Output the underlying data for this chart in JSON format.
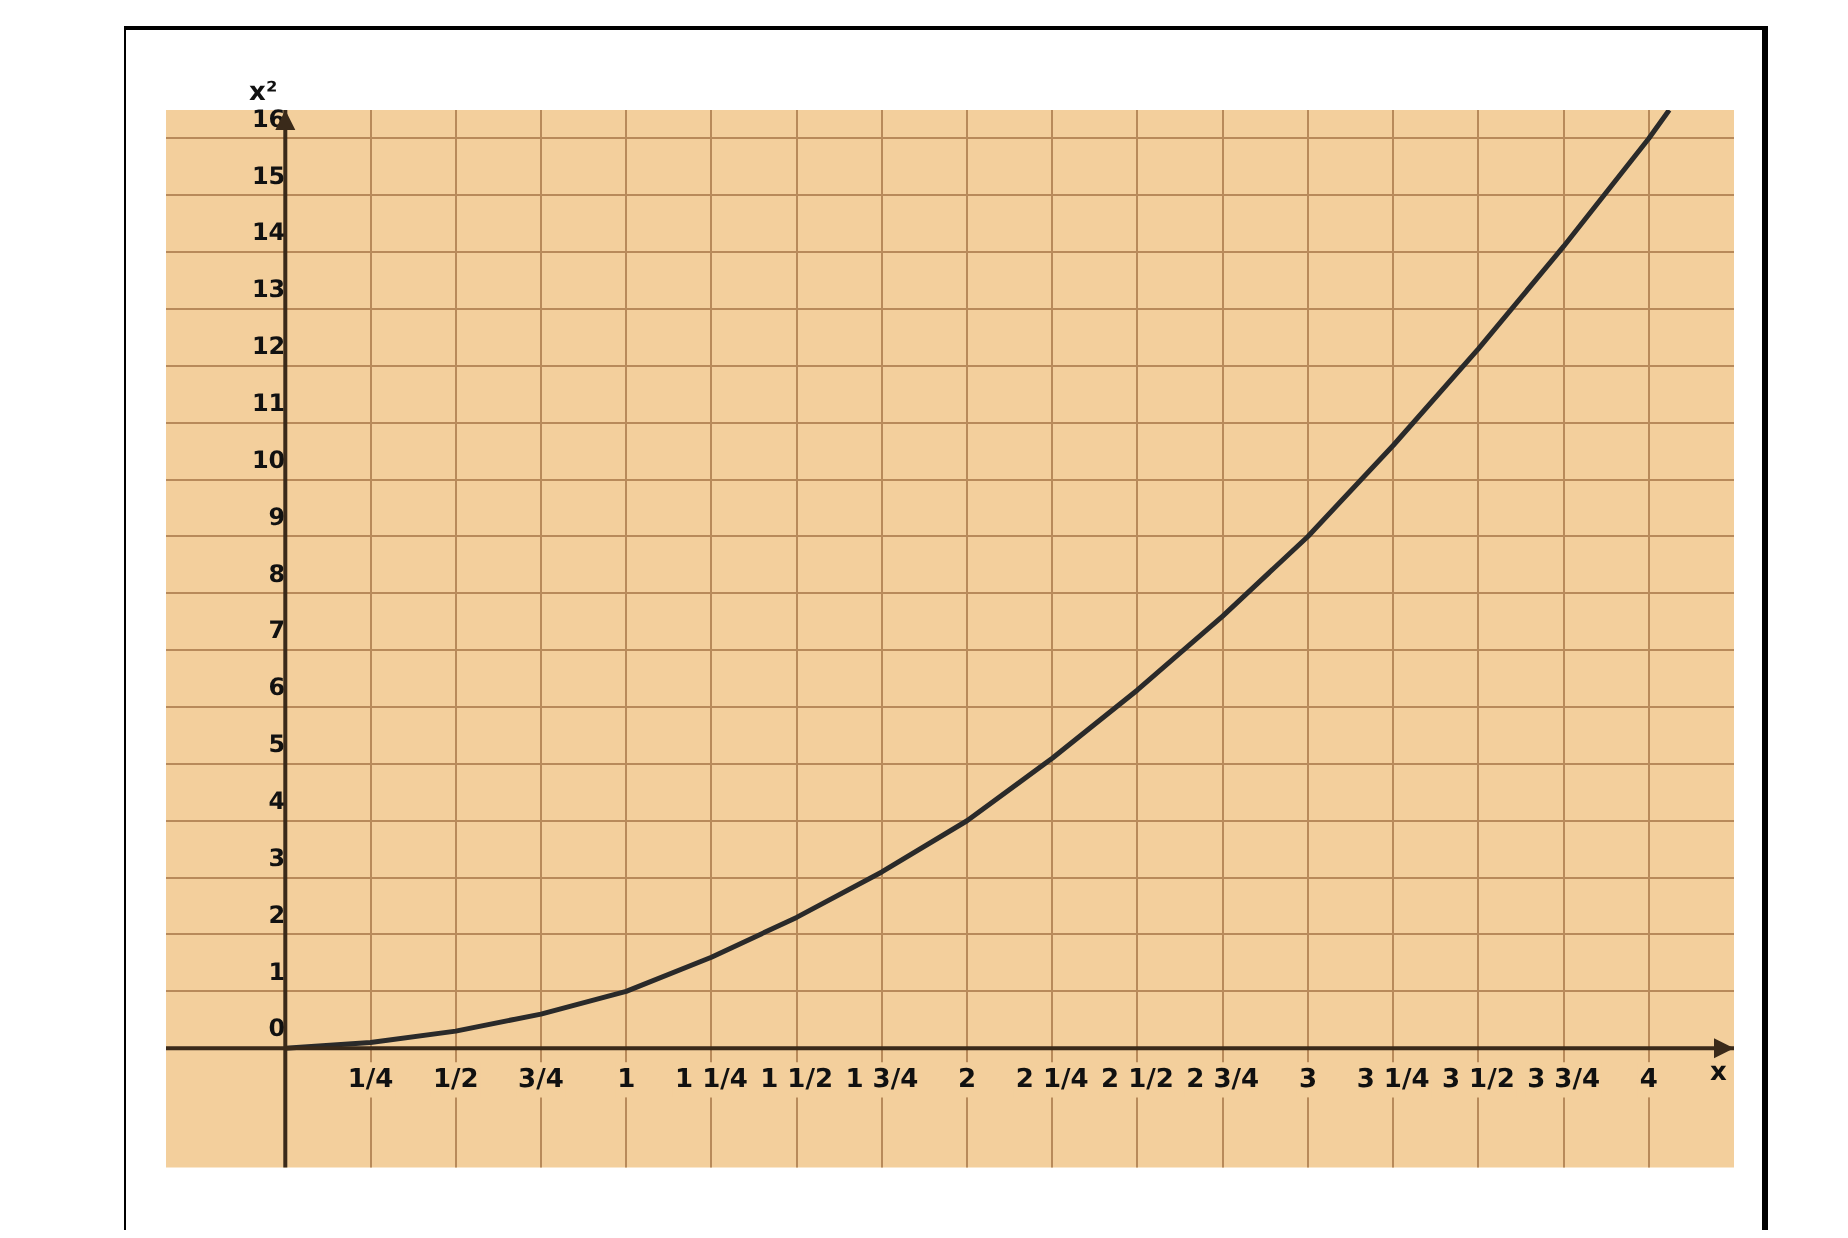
{
  "chart_data": {
    "type": "line",
    "xlabel": "x",
    "ylabel": "x²",
    "x": [
      0,
      0.25,
      0.5,
      0.75,
      1,
      1.25,
      1.5,
      1.75,
      2,
      2.25,
      2.5,
      2.75,
      3,
      3.25,
      3.5,
      3.75,
      4,
      4.06
    ],
    "series": [
      {
        "color": "#2a2a2a",
        "values": [
          0,
          0.1,
          0.3,
          0.6,
          1,
          1.6,
          2.3,
          3.1,
          4,
          5.1,
          6.3,
          7.6,
          9,
          10.6,
          12.3,
          14.1,
          16,
          16.5
        ]
      }
    ],
    "xlim": [
      -0.35,
      4.25
    ],
    "ylim": [
      -2.1,
      16.5
    ],
    "xticks": [
      {
        "value": 0.25,
        "label": "1/4"
      },
      {
        "value": 0.5,
        "label": "1/2"
      },
      {
        "value": 0.75,
        "label": "3/4"
      },
      1,
      {
        "value": 1.25,
        "label": "1 1/4"
      },
      {
        "value": 1.5,
        "label": "1 1/2"
      },
      {
        "value": 1.75,
        "label": "1 3/4"
      },
      2,
      {
        "value": 2.25,
        "label": "2 1/4"
      },
      {
        "value": 2.5,
        "label": "2 1/2"
      },
      {
        "value": 2.75,
        "label": "2 3/4"
      },
      3,
      {
        "value": 3.25,
        "label": "3 1/4"
      },
      {
        "value": 3.5,
        "label": "3 1/2"
      },
      {
        "value": 3.75,
        "label": "3 3/4"
      },
      4
    ],
    "yticks": [
      0,
      1,
      2,
      3,
      4,
      5,
      6,
      7,
      8,
      9,
      10,
      11,
      12,
      13,
      14,
      15,
      16
    ],
    "grid": true,
    "marker": "none",
    "line_style": "solid",
    "legend": false
  }
}
